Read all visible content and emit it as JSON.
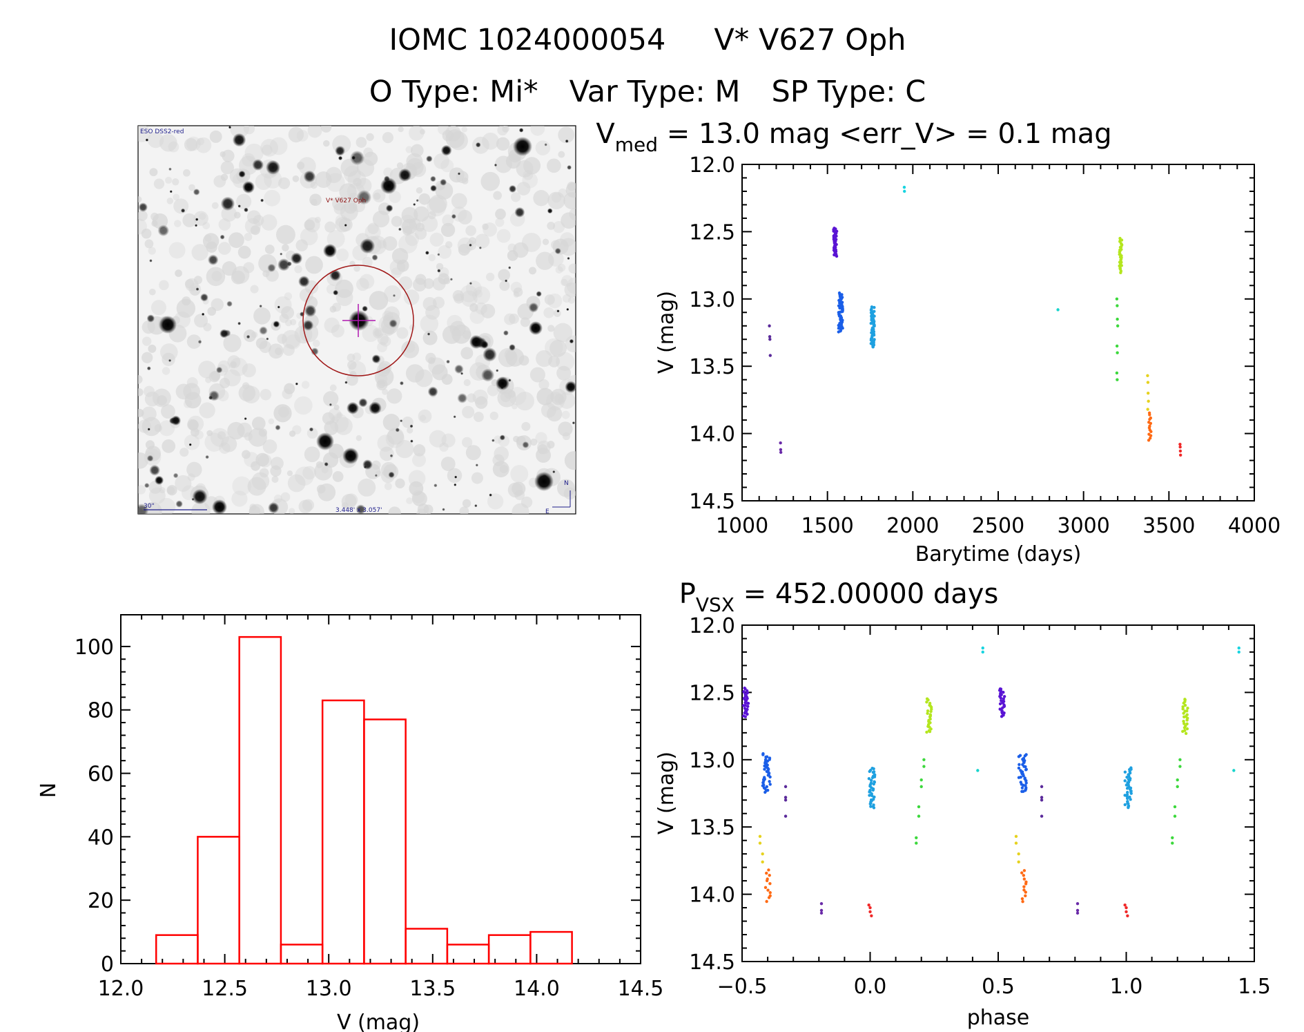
{
  "header": {
    "title_id": "IOMC 1024000054",
    "title_name": "V* V627 Oph",
    "otype": "O Type: Mi*",
    "vartype": "Var Type: M",
    "sptype": "SP Type: C"
  },
  "image_panel": {
    "survey_label": "ESO DSS2-red",
    "target_label": "V* V627 Oph",
    "scale_label": "30\"",
    "fov_label": "3.448' x 3.057'",
    "north_label": "N",
    "east_label": "E"
  },
  "lc_panel": {
    "title_pre": "V",
    "title_sub": "med",
    "title_post": " = 13.0 mag <err_V> = 0.1 mag"
  },
  "phase_panel": {
    "title_pre": "P",
    "title_sub": "VSX",
    "title_post": " = 452.00000 days"
  },
  "chart_data": [
    {
      "type": "bar",
      "name": "histogram",
      "xlabel": "V (mag)",
      "ylabel": "N",
      "xlim": [
        12.0,
        14.5
      ],
      "ylim": [
        0,
        110
      ],
      "xticks": [
        "12.0",
        "12.5",
        "13.0",
        "13.5",
        "14.0",
        "14.5"
      ],
      "yticks": [
        "0",
        "20",
        "40",
        "60",
        "80",
        "100"
      ],
      "bin_edges": [
        12.17,
        12.37,
        12.57,
        12.77,
        12.97,
        13.17,
        13.37,
        13.57,
        13.77,
        13.97,
        14.17
      ],
      "values": [
        9,
        40,
        103,
        6,
        83,
        77,
        11,
        6,
        9,
        10
      ],
      "color": "#ff0000"
    },
    {
      "type": "scatter",
      "name": "light_curve",
      "xlabel": "Barytime (days)",
      "ylabel": "V (mag)",
      "xlim": [
        1000,
        4000
      ],
      "ylim": [
        14.5,
        12.0
      ],
      "xticks": [
        "1000",
        "1500",
        "2000",
        "2500",
        "3000",
        "3500",
        "4000"
      ],
      "yticks": [
        "12.0",
        "12.5",
        "13.0",
        "13.5",
        "14.0",
        "14.5"
      ],
      "groups": [
        {
          "color": "#5a2a9a",
          "points": [
            [
              1160,
              13.2
            ],
            [
              1162,
              13.28
            ],
            [
              1163,
              13.3
            ],
            [
              1165,
              13.42
            ]
          ]
        },
        {
          "color": "#6a2aa8",
          "points": [
            [
              1225,
              14.07
            ],
            [
              1226,
              14.12
            ],
            [
              1227,
              14.14
            ]
          ]
        },
        {
          "color": "#5a14d4",
          "vband": {
            "x": [
              1535,
              1555
            ],
            "y": [
              12.47,
              12.68
            ],
            "n": 40
          }
        },
        {
          "color": "#1a5ee8",
          "vband": {
            "x": [
              1565,
              1590
            ],
            "y": [
              12.96,
              13.24
            ],
            "n": 55
          }
        },
        {
          "color": "#1ea0e0",
          "vband": {
            "x": [
              1755,
              1775
            ],
            "y": [
              13.06,
              13.36
            ],
            "n": 55
          }
        },
        {
          "color": "#18d4e0",
          "points": [
            [
              1950,
              12.17
            ],
            [
              1951,
              12.2
            ]
          ]
        },
        {
          "color": "#18d4cc",
          "points": [
            [
              2850,
              13.08
            ]
          ]
        },
        {
          "color": "#3cd83c",
          "points": [
            [
              3195,
              13.0
            ],
            [
              3197,
              13.05
            ],
            [
              3198,
              13.15
            ],
            [
              3200,
              13.2
            ],
            [
              3196,
              13.35
            ],
            [
              3198,
              13.4
            ],
            [
              3195,
              13.55
            ],
            [
              3197,
              13.6
            ]
          ]
        },
        {
          "color": "#b4e61e",
          "vband": {
            "x": [
              3210,
              3225
            ],
            "y": [
              12.55,
              12.8
            ],
            "n": 30
          }
        },
        {
          "color": "#e6d21e",
          "points": [
            [
              3375,
              13.57
            ],
            [
              3377,
              13.62
            ],
            [
              3378,
              13.7
            ],
            [
              3380,
              13.76
            ],
            [
              3376,
              13.82
            ]
          ]
        },
        {
          "color": "#ff6a14",
          "vband": {
            "x": [
              3380,
              3395
            ],
            "y": [
              13.85,
              14.05
            ],
            "n": 14
          }
        },
        {
          "color": "#f02828",
          "points": [
            [
              3565,
              14.08
            ],
            [
              3566,
              14.1
            ],
            [
              3567,
              14.13
            ],
            [
              3568,
              14.16
            ]
          ]
        }
      ]
    },
    {
      "type": "scatter",
      "name": "phase_curve",
      "xlabel": "phase",
      "ylabel": "V (mag)",
      "xlim": [
        -0.5,
        1.5
      ],
      "ylim": [
        14.5,
        12.0
      ],
      "xticks": [
        "−0.5",
        "0.0",
        "0.5",
        "1.0",
        "1.5"
      ],
      "yticks": [
        "12.0",
        "12.5",
        "13.0",
        "13.5",
        "14.0",
        "14.5"
      ],
      "period_days": 452.0,
      "groups": [
        {
          "color": "#5a14d4",
          "vband": {
            "x": [
              -0.495,
              -0.475
            ],
            "y": [
              12.47,
              12.68
            ],
            "n": 30
          }
        },
        {
          "color": "#5a14d4",
          "vband": {
            "x": [
              0.505,
              0.525
            ],
            "y": [
              12.47,
              12.68
            ],
            "n": 30
          }
        },
        {
          "color": "#1a5ee8",
          "vband": {
            "x": [
              -0.42,
              -0.39
            ],
            "y": [
              12.96,
              13.24
            ],
            "n": 40
          }
        },
        {
          "color": "#1a5ee8",
          "vband": {
            "x": [
              0.58,
              0.61
            ],
            "y": [
              12.96,
              13.24
            ],
            "n": 40
          }
        },
        {
          "color": "#5a2a9a",
          "points": [
            [
              -0.33,
              13.2
            ],
            [
              -0.33,
              13.28
            ],
            [
              -0.33,
              13.3
            ],
            [
              -0.33,
              13.42
            ],
            [
              0.67,
              13.2
            ],
            [
              0.67,
              13.28
            ],
            [
              0.67,
              13.3
            ],
            [
              0.67,
              13.42
            ]
          ]
        },
        {
          "color": "#6a2aa8",
          "points": [
            [
              -0.19,
              14.07
            ],
            [
              -0.19,
              14.12
            ],
            [
              -0.19,
              14.14
            ],
            [
              0.81,
              14.07
            ],
            [
              0.81,
              14.12
            ],
            [
              0.81,
              14.14
            ]
          ]
        },
        {
          "color": "#1ea0e0",
          "vband": {
            "x": [
              -0.005,
              0.02
            ],
            "y": [
              13.06,
              13.36
            ],
            "n": 40
          }
        },
        {
          "color": "#1ea0e0",
          "vband": {
            "x": [
              0.995,
              1.02
            ],
            "y": [
              13.06,
              13.36
            ],
            "n": 40
          }
        },
        {
          "color": "#3cd83c",
          "points": [
            [
              0.18,
              13.58
            ],
            [
              0.18,
              13.62
            ],
            [
              0.19,
              13.35
            ],
            [
              0.19,
              13.42
            ],
            [
              0.2,
              13.15
            ],
            [
              0.2,
              13.2
            ],
            [
              0.21,
              13.0
            ],
            [
              0.21,
              13.05
            ],
            [
              1.18,
              13.58
            ],
            [
              1.18,
              13.62
            ],
            [
              1.19,
              13.35
            ],
            [
              1.19,
              13.42
            ],
            [
              1.2,
              13.15
            ],
            [
              1.2,
              13.2
            ],
            [
              1.21,
              13.0
            ],
            [
              1.21,
              13.05
            ]
          ]
        },
        {
          "color": "#b4e61e",
          "vband": {
            "x": [
              0.22,
              0.24
            ],
            "y": [
              12.55,
              12.8
            ],
            "n": 25
          }
        },
        {
          "color": "#b4e61e",
          "vband": {
            "x": [
              1.22,
              1.24
            ],
            "y": [
              12.55,
              12.8
            ],
            "n": 25
          }
        },
        {
          "color": "#18d4e0",
          "points": [
            [
              0.44,
              12.17
            ],
            [
              0.44,
              12.2
            ],
            [
              1.44,
              12.17
            ],
            [
              1.44,
              12.2
            ]
          ]
        },
        {
          "color": "#18d4cc",
          "points": [
            [
              0.42,
              13.08
            ],
            [
              1.42,
              13.08
            ]
          ]
        },
        {
          "color": "#e6d21e",
          "points": [
            [
              -0.43,
              13.57
            ],
            [
              -0.43,
              13.62
            ],
            [
              -0.42,
              13.7
            ],
            [
              -0.42,
              13.76
            ],
            [
              0.57,
              13.57
            ],
            [
              0.57,
              13.62
            ],
            [
              0.58,
              13.7
            ],
            [
              0.58,
              13.76
            ]
          ]
        },
        {
          "color": "#ff6a14",
          "vband": {
            "x": [
              -0.41,
              -0.39
            ],
            "y": [
              13.82,
              14.05
            ],
            "n": 12
          }
        },
        {
          "color": "#ff6a14",
          "vband": {
            "x": [
              0.59,
              0.61
            ],
            "y": [
              13.82,
              14.05
            ],
            "n": 12
          }
        },
        {
          "color": "#f02828",
          "points": [
            [
              -0.005,
              14.08
            ],
            [
              0.0,
              14.1
            ],
            [
              0.0,
              14.13
            ],
            [
              0.005,
              14.16
            ],
            [
              0.995,
              14.08
            ],
            [
              1.0,
              14.1
            ],
            [
              1.0,
              14.13
            ],
            [
              1.005,
              14.16
            ]
          ]
        }
      ]
    }
  ]
}
